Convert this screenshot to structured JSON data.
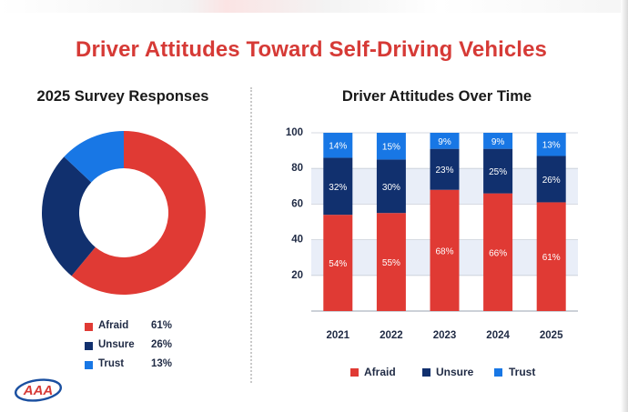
{
  "title": "Driver Attitudes Toward Self-Driving Vehicles",
  "logo_text": "AAA",
  "colors": {
    "title": "#d63a36",
    "afraid": "#e03a34",
    "unsure": "#11306e",
    "trust": "#1877e5",
    "band": "#e9eef8"
  },
  "chart_data": [
    {
      "type": "pie",
      "subtype": "donut",
      "title": "2025 Survey Responses",
      "labels": [
        "Afraid",
        "Unsure",
        "Trust"
      ],
      "values": [
        61,
        26,
        13
      ],
      "value_labels": [
        "61%",
        "26%",
        "13%"
      ]
    },
    {
      "type": "bar",
      "stacked": true,
      "title": "Driver Attitudes Over Time",
      "categories": [
        "2021",
        "2022",
        "2023",
        "2024",
        "2025"
      ],
      "ylim": [
        0,
        100
      ],
      "yticks": [
        "20",
        "40",
        "60",
        "80",
        "100"
      ],
      "ytick_values": [
        20,
        40,
        60,
        80,
        100
      ],
      "series": [
        {
          "name": "Afraid",
          "values": [
            54,
            55,
            68,
            66,
            61
          ],
          "labels": [
            "54%",
            "55%",
            "68%",
            "66%",
            "61%"
          ]
        },
        {
          "name": "Unsure",
          "values": [
            32,
            30,
            23,
            25,
            26
          ],
          "labels": [
            "32%",
            "30%",
            "23%",
            "25%",
            "26%"
          ]
        },
        {
          "name": "Trust",
          "values": [
            14,
            15,
            9,
            9,
            13
          ],
          "labels": [
            "14%",
            "15%",
            "9%",
            "9%",
            "13%"
          ]
        }
      ],
      "legend": [
        "Afraid",
        "Unsure",
        "Trust"
      ],
      "legend_position": "bottom"
    }
  ]
}
